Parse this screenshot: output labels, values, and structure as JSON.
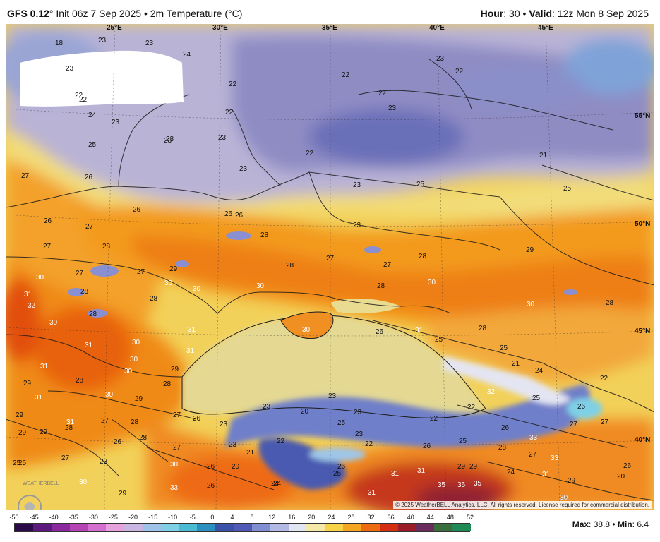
{
  "header": {
    "model": "GFS 0.12",
    "deg": "°",
    "init": "Init 06z 7 Sep 2025",
    "sep": "•",
    "product": "2m Temperature (°C)",
    "hour_label": "Hour",
    "hour_value": "30",
    "valid_label": "Valid",
    "valid_value": "12z Mon 8 Sep 2025"
  },
  "longitude_labels": [
    "25°E",
    "30°E",
    "35°E",
    "40°E",
    "45°E"
  ],
  "latitude_labels": [
    "55°N",
    "50°N",
    "45°N",
    "40°N"
  ],
  "temperature_labels": [
    {
      "t": "18",
      "k": "a"
    },
    {
      "t": "23",
      "k": "b"
    },
    {
      "t": "23",
      "k": "c"
    },
    {
      "t": "24",
      "k": "d"
    },
    {
      "t": "23",
      "k": "e"
    },
    {
      "t": "22",
      "k": "f"
    },
    {
      "t": "22",
      "k": "g"
    },
    {
      "t": "23",
      "k": "h"
    },
    {
      "t": "22",
      "k": "i"
    },
    {
      "t": "22",
      "k": "j"
    },
    {
      "t": "24",
      "k": "k"
    },
    {
      "t": "23",
      "k": "l"
    },
    {
      "t": "22",
      "k": "m"
    },
    {
      "t": "23",
      "k": "n"
    },
    {
      "t": "22",
      "k": "o"
    },
    {
      "t": "25",
      "k": "p"
    },
    {
      "t": "23",
      "k": "q"
    },
    {
      "t": "23",
      "k": "r"
    },
    {
      "t": "22",
      "k": "s"
    },
    {
      "t": "23",
      "k": "t"
    },
    {
      "t": "22",
      "k": "u"
    },
    {
      "t": "23",
      "k": "v"
    },
    {
      "t": "21",
      "k": "w"
    },
    {
      "t": "27",
      "k": "x"
    },
    {
      "t": "26",
      "k": "y"
    },
    {
      "t": "23",
      "k": "z"
    },
    {
      "t": "25",
      "k": "aa"
    },
    {
      "t": "25",
      "k": "ab"
    },
    {
      "t": "26",
      "k": "ac"
    },
    {
      "t": "26",
      "k": "ad"
    },
    {
      "t": "26",
      "k": "ae"
    },
    {
      "t": "26",
      "k": "af"
    },
    {
      "t": "23",
      "k": "ag"
    },
    {
      "t": "27",
      "k": "ah"
    },
    {
      "t": "28",
      "k": "ai"
    },
    {
      "t": "27",
      "k": "aj"
    },
    {
      "t": "28",
      "k": "ak"
    },
    {
      "t": "27",
      "k": "al"
    },
    {
      "t": "28",
      "k": "am"
    },
    {
      "t": "27",
      "k": "an"
    },
    {
      "t": "28",
      "k": "ao"
    },
    {
      "t": "29",
      "k": "ap"
    },
    {
      "t": "30",
      "k": "aq"
    },
    {
      "t": "27",
      "k": "ar"
    },
    {
      "t": "29",
      "k": "as"
    },
    {
      "t": "30",
      "k": "at"
    },
    {
      "t": "30",
      "k": "au"
    },
    {
      "t": "30",
      "k": "av"
    },
    {
      "t": "28",
      "k": "aw"
    },
    {
      "t": "27",
      "k": "ax"
    },
    {
      "t": "31",
      "k": "ay"
    },
    {
      "t": "32",
      "k": "az"
    },
    {
      "t": "28",
      "k": "ba"
    },
    {
      "t": "28",
      "k": "bb"
    },
    {
      "t": "30",
      "k": "bc"
    },
    {
      "t": "31",
      "k": "bd"
    },
    {
      "t": "30",
      "k": "be"
    },
    {
      "t": "28",
      "k": "bf"
    },
    {
      "t": "30",
      "k": "bg"
    },
    {
      "t": "31",
      "k": "bh"
    },
    {
      "t": "30",
      "k": "bi"
    },
    {
      "t": "26",
      "k": "bj"
    },
    {
      "t": "31",
      "k": "bk"
    },
    {
      "t": "25",
      "k": "bl"
    },
    {
      "t": "28",
      "k": "bm"
    },
    {
      "t": "25",
      "k": "bn"
    },
    {
      "t": "28",
      "k": "bo"
    },
    {
      "t": "31",
      "k": "bp"
    },
    {
      "t": "30",
      "k": "bq"
    },
    {
      "t": "30",
      "k": "br"
    },
    {
      "t": "29",
      "k": "bs"
    },
    {
      "t": "21",
      "k": "bt"
    },
    {
      "t": "24",
      "k": "bu"
    },
    {
      "t": "22",
      "k": "bv"
    },
    {
      "t": "29",
      "k": "bw"
    },
    {
      "t": "28",
      "k": "bx"
    },
    {
      "t": "31",
      "k": "by"
    },
    {
      "t": "30",
      "k": "bz"
    },
    {
      "t": "29",
      "k": "ca"
    },
    {
      "t": "28",
      "k": "cb"
    },
    {
      "t": "30",
      "k": "cc"
    },
    {
      "t": "31",
      "k": "cd"
    },
    {
      "t": "23",
      "k": "ce"
    },
    {
      "t": "23",
      "k": "cf"
    },
    {
      "t": "20",
      "k": "cg"
    },
    {
      "t": "23",
      "k": "ch"
    },
    {
      "t": "22",
      "k": "ci"
    },
    {
      "t": "32",
      "k": "cj"
    },
    {
      "t": "25",
      "k": "ck"
    },
    {
      "t": "26",
      "k": "cl"
    },
    {
      "t": "27",
      "k": "cm"
    },
    {
      "t": "28",
      "k": "cn"
    },
    {
      "t": "27",
      "k": "co"
    },
    {
      "t": "26",
      "k": "cp"
    },
    {
      "t": "23",
      "k": "cq"
    },
    {
      "t": "25",
      "k": "cr"
    },
    {
      "t": "23",
      "k": "cs"
    },
    {
      "t": "22",
      "k": "ct"
    },
    {
      "t": "26",
      "k": "cu"
    },
    {
      "t": "25",
      "k": "cv"
    },
    {
      "t": "26",
      "k": "cw"
    },
    {
      "t": "33",
      "k": "cx"
    },
    {
      "t": "27",
      "k": "cy"
    },
    {
      "t": "27",
      "k": "cz"
    },
    {
      "t": "29",
      "k": "da"
    },
    {
      "t": "28",
      "k": "db"
    },
    {
      "t": "26",
      "k": "dc"
    },
    {
      "t": "28",
      "k": "dd"
    },
    {
      "t": "27",
      "k": "de"
    },
    {
      "t": "23",
      "k": "df"
    },
    {
      "t": "21",
      "k": "dg"
    },
    {
      "t": "22",
      "k": "dh"
    },
    {
      "t": "22",
      "k": "di"
    },
    {
      "t": "28",
      "k": "dj"
    },
    {
      "t": "33",
      "k": "dk"
    },
    {
      "t": "27",
      "k": "dl"
    },
    {
      "t": "26",
      "k": "dm"
    },
    {
      "t": "31",
      "k": "dn"
    },
    {
      "t": "29",
      "k": "do"
    },
    {
      "t": "20",
      "k": "dp"
    },
    {
      "t": "26",
      "k": "dq"
    },
    {
      "t": "25",
      "k": "dr"
    },
    {
      "t": "30",
      "k": "ds"
    },
    {
      "t": "29",
      "k": "dt"
    },
    {
      "t": "25",
      "k": "du"
    },
    {
      "t": "23",
      "k": "dv"
    },
    {
      "t": "30",
      "k": "dw"
    },
    {
      "t": "33",
      "k": "dx"
    },
    {
      "t": "26",
      "k": "dy"
    },
    {
      "t": "24",
      "k": "dz"
    },
    {
      "t": "31",
      "k": "ea"
    },
    {
      "t": "31",
      "k": "eb"
    },
    {
      "t": "31",
      "k": "ec"
    },
    {
      "t": "32",
      "k": "ed"
    },
    {
      "t": "35",
      "k": "ee"
    },
    {
      "t": "36",
      "k": "ef"
    },
    {
      "t": "35",
      "k": "eg"
    },
    {
      "t": "24",
      "k": "eh"
    },
    {
      "t": "29",
      "k": "ei"
    },
    {
      "t": "31",
      "k": "ej"
    },
    {
      "t": "29",
      "k": "ek"
    },
    {
      "t": "20",
      "k": "el"
    },
    {
      "t": "30",
      "k": "em"
    },
    {
      "t": "26",
      "k": "en"
    },
    {
      "t": "24",
      "k": "eo"
    },
    {
      "t": "29",
      "k": "ep"
    },
    {
      "t": "27",
      "k": "eq"
    },
    {
      "t": "25",
      "k": "er"
    },
    {
      "t": "29",
      "k": "es"
    },
    {
      "t": "29",
      "k": "et"
    }
  ],
  "copyright": "© 2025 WeatherBELL Analytics, LLC. All rights reserved. License required for commercial distribution.",
  "logo_text": "WEATHERBELL",
  "legend": {
    "ticks": [
      "-50",
      "-45",
      "-40",
      "-35",
      "-30",
      "-25",
      "-20",
      "-15",
      "-10",
      "-5",
      "0",
      "4",
      "8",
      "12",
      "16",
      "20",
      "24",
      "28",
      "32",
      "36",
      "40",
      "44",
      "48",
      "52"
    ],
    "colors": [
      "#2b0a4a",
      "#5b1a7e",
      "#8a2a9e",
      "#b545b5",
      "#d56fcf",
      "#e7a1dd",
      "#c9b6e3",
      "#9fc2e8",
      "#7fd0e6",
      "#4bbbd3",
      "#2b8fbf",
      "#3a52a8",
      "#5159b6",
      "#7f8fd1",
      "#b2b9e4",
      "#e2e5f2",
      "#f4e9a6",
      "#f7d447",
      "#f5a623",
      "#ef6b12",
      "#d42e12",
      "#9b1d2a",
      "#6b2c5e",
      "#3a6e3c",
      "#1f8a55"
    ],
    "min_value": -50,
    "max_value": 52
  },
  "stats": {
    "max_label": "Max",
    "max_value": "38.8",
    "sep": "•",
    "min_label": "Min",
    "min_value": "6.4"
  }
}
